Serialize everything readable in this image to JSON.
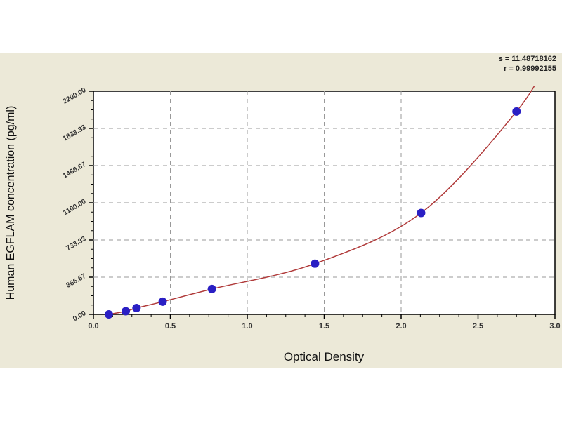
{
  "chart_data": {
    "type": "scatter",
    "title": "",
    "xlabel": "Optical Density",
    "ylabel": "Human EGFLAM concentration (pg/ml)",
    "xlim": [
      0,
      3.0
    ],
    "ylim": [
      0,
      2200
    ],
    "xticks": [
      "0.0",
      "0.5",
      "1.0",
      "1.5",
      "2.0",
      "2.5",
      "3.0"
    ],
    "yticks": [
      "0.00",
      "366.67",
      "733.33",
      "1100.00",
      "1466.67",
      "1833.33",
      "2200.00"
    ],
    "grid": true,
    "series": [
      {
        "x": [
          0.1,
          0.21,
          0.28,
          0.45,
          0.77,
          1.44,
          2.13,
          2.75
        ],
        "y": [
          0,
          31.25,
          62.5,
          125,
          250,
          500,
          1000,
          2000
        ]
      }
    ],
    "fit_curve": true,
    "annotations": [
      "s = 11.48718162",
      "r = 0.99992155"
    ],
    "colors": {
      "points": "#2a1fc4",
      "curve": "#b03a3a",
      "background": "#ECE9D8",
      "grid": "#999999"
    }
  }
}
